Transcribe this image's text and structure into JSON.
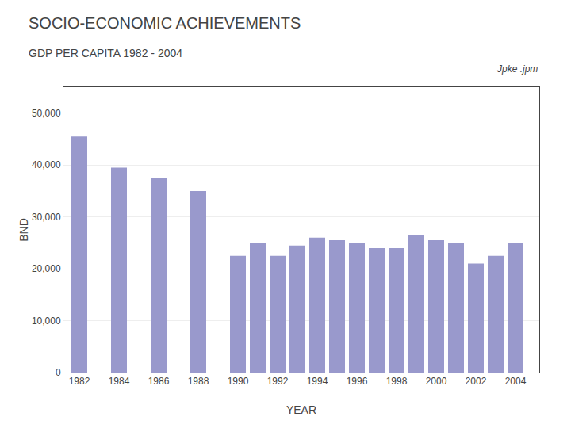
{
  "chart_data": {
    "type": "bar",
    "title": "SOCIO-ECONOMIC ACHIEVEMENTS",
    "subtitle": "GDP PER CAPITA 1982 - 2004",
    "annotations": [
      "Jpke .jpm"
    ],
    "xlabel": "YEAR",
    "ylabel": "BND",
    "x": [
      1982,
      1984,
      1986,
      1988,
      1990,
      1991,
      1992,
      1993,
      1994,
      1995,
      1996,
      1997,
      1998,
      1999,
      2000,
      2001,
      2002,
      2003,
      2004
    ],
    "values": [
      45500,
      39500,
      37500,
      35000,
      22500,
      25000,
      22500,
      24500,
      26000,
      25500,
      25000,
      24000,
      24000,
      26500,
      25500,
      25000,
      21000,
      22500,
      25000
    ],
    "color": "#9999cc",
    "xlim": [
      1981.2,
      2005.2
    ],
    "xticks": [
      1982,
      1984,
      1986,
      1988,
      1990,
      1992,
      1994,
      1996,
      1998,
      2000,
      2002,
      2004
    ],
    "ylim": [
      0,
      55000
    ],
    "yticks": [
      0,
      {
        "value": 10000,
        "label": "10,000"
      },
      {
        "value": 20000,
        "label": "20,000"
      },
      {
        "value": 30000,
        "label": "30,000"
      },
      {
        "value": 40000,
        "label": "40,000"
      },
      {
        "value": 50000,
        "label": "50,000"
      }
    ],
    "grid": true
  }
}
